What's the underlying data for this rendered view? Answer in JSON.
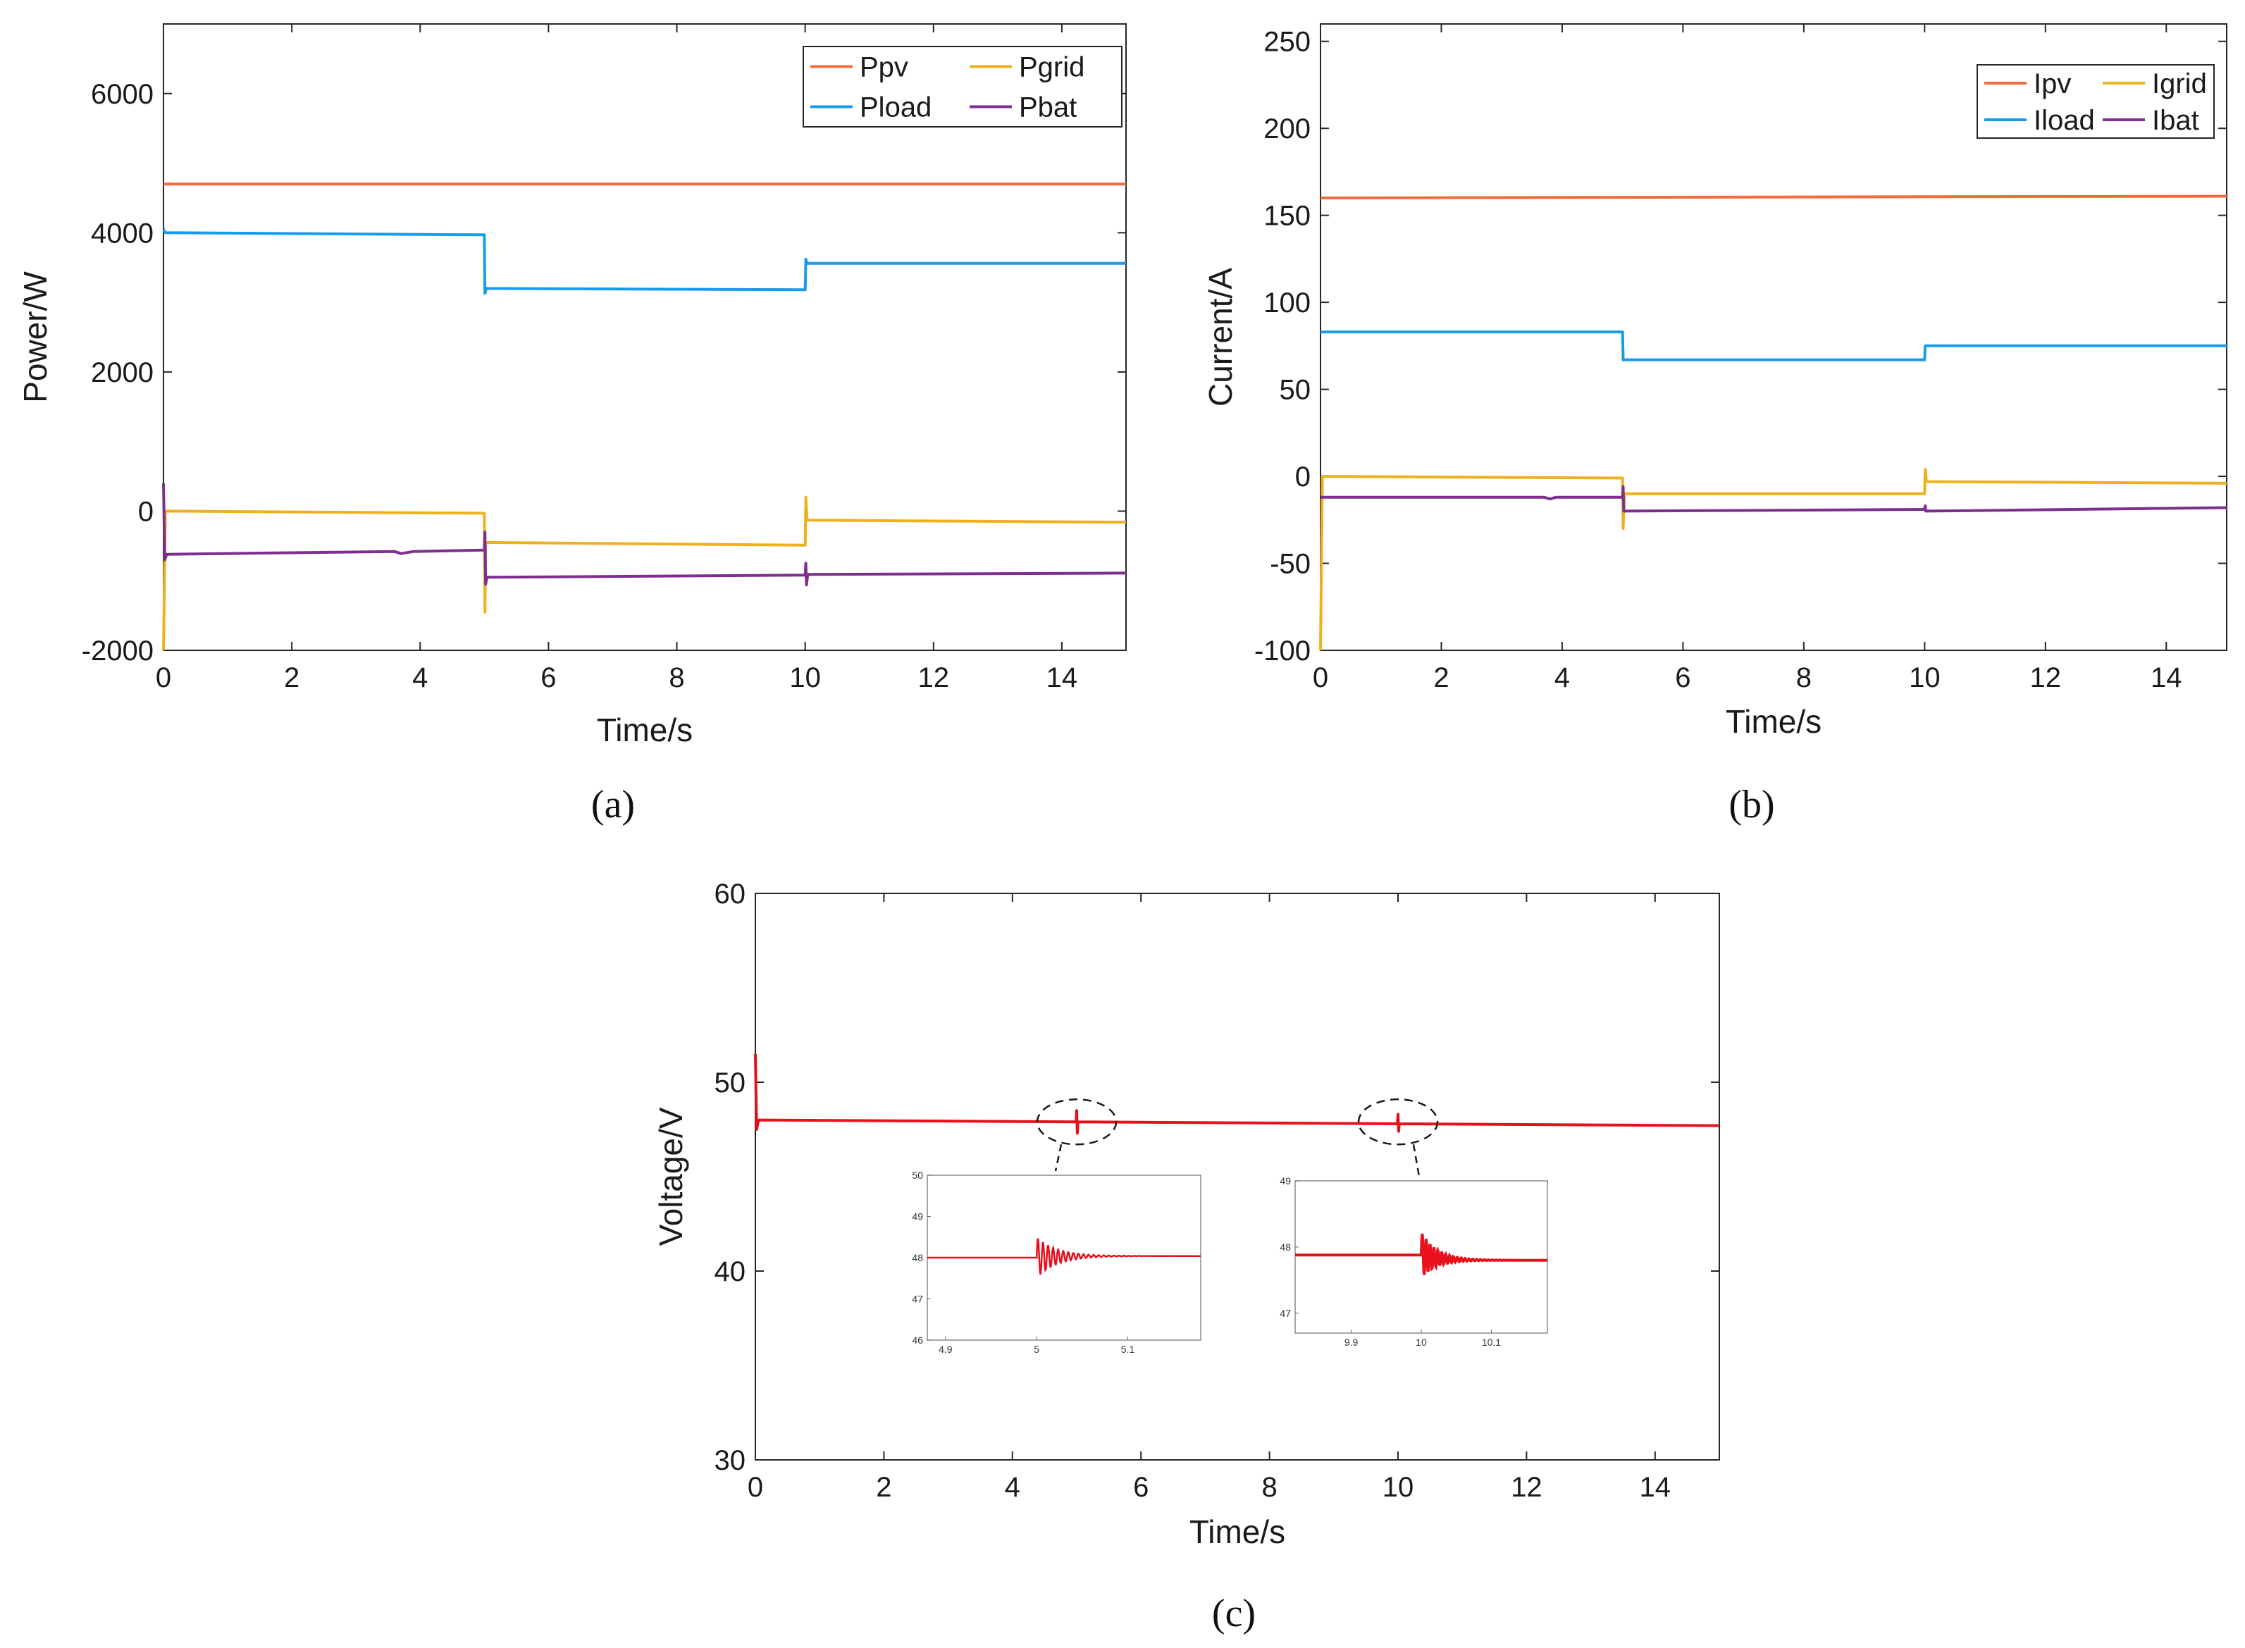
{
  "chart_data": [
    {
      "id": "a",
      "type": "line",
      "caption": "(a)",
      "xlabel": "Time/s",
      "ylabel": "Power/W",
      "xlim": [
        0,
        15
      ],
      "ylim": [
        -2000,
        7000
      ],
      "xticks": [
        0,
        2,
        4,
        6,
        8,
        10,
        12,
        14
      ],
      "yticks": [
        -2000,
        0,
        2000,
        4000,
        6000
      ],
      "grid": false,
      "legend_position": "top-right",
      "series": [
        {
          "name": "Ppv",
          "color": "#F26B3A",
          "points": [
            [
              0,
              4700
            ],
            [
              15,
              4700
            ]
          ]
        },
        {
          "name": "Pgrid",
          "color": "#EDB120",
          "points": [
            [
              0,
              -2000
            ],
            [
              0.03,
              0
            ],
            [
              4.99,
              -30
            ],
            [
              5,
              -30
            ],
            [
              5.01,
              -1450
            ],
            [
              5.02,
              -450
            ],
            [
              9.99,
              -490
            ],
            [
              10,
              -490
            ],
            [
              10.01,
              200
            ],
            [
              10.03,
              -130
            ],
            [
              15,
              -160
            ]
          ]
        },
        {
          "name": "Pload",
          "color": "#1A9BEA",
          "points": [
            [
              0,
              4050
            ],
            [
              0.03,
              4000
            ],
            [
              4.99,
              3970
            ],
            [
              5,
              3970
            ],
            [
              5.01,
              3130
            ],
            [
              5.03,
              3200
            ],
            [
              9.99,
              3180
            ],
            [
              10,
              3180
            ],
            [
              10.01,
              3620
            ],
            [
              10.03,
              3560
            ],
            [
              15,
              3560
            ]
          ]
        },
        {
          "name": "Pbat",
          "color": "#7E2F8E",
          "points": [
            [
              0,
              400
            ],
            [
              0.02,
              -700
            ],
            [
              0.05,
              -620
            ],
            [
              3.6,
              -580
            ],
            [
              3.7,
              -610
            ],
            [
              3.9,
              -580
            ],
            [
              4.99,
              -560
            ],
            [
              5,
              -560
            ],
            [
              5.01,
              -300
            ],
            [
              5.02,
              -1050
            ],
            [
              5.04,
              -950
            ],
            [
              9.99,
              -920
            ],
            [
              10,
              -920
            ],
            [
              10.01,
              -750
            ],
            [
              10.02,
              -1060
            ],
            [
              10.04,
              -910
            ],
            [
              15,
              -890
            ]
          ]
        }
      ]
    },
    {
      "id": "b",
      "type": "line",
      "caption": "(b)",
      "xlabel": "Time/s",
      "ylabel": "Current/A",
      "xlim": [
        0,
        15
      ],
      "ylim": [
        -100,
        260
      ],
      "xticks": [
        0,
        2,
        4,
        6,
        8,
        10,
        12,
        14
      ],
      "yticks": [
        -100,
        -50,
        0,
        50,
        100,
        150,
        200,
        250
      ],
      "grid": false,
      "legend_position": "top-right",
      "series": [
        {
          "name": "Ipv",
          "color": "#F26B3A",
          "points": [
            [
              0,
              160
            ],
            [
              15,
              161
            ]
          ]
        },
        {
          "name": "Igrid",
          "color": "#EDB120",
          "points": [
            [
              0,
              -100
            ],
            [
              0.03,
              0
            ],
            [
              4.99,
              -1
            ],
            [
              5,
              -1
            ],
            [
              5.01,
              -30
            ],
            [
              5.03,
              -10
            ],
            [
              9.99,
              -10
            ],
            [
              10,
              -10
            ],
            [
              10.01,
              4
            ],
            [
              10.03,
              -3
            ],
            [
              15,
              -4
            ]
          ]
        },
        {
          "name": "Iload",
          "color": "#1A9BEA",
          "points": [
            [
              0,
              83
            ],
            [
              4.99,
              83
            ],
            [
              5,
              83
            ],
            [
              5.01,
              67
            ],
            [
              9.99,
              67
            ],
            [
              10,
              67
            ],
            [
              10.01,
              75
            ],
            [
              15,
              75
            ]
          ]
        },
        {
          "name": "Ibat",
          "color": "#7E2F8E",
          "points": [
            [
              0,
              -12
            ],
            [
              3.7,
              -12
            ],
            [
              3.8,
              -13
            ],
            [
              3.9,
              -12
            ],
            [
              4.99,
              -12
            ],
            [
              5,
              -12
            ],
            [
              5.01,
              -6
            ],
            [
              5.02,
              -20
            ],
            [
              9.99,
              -19
            ],
            [
              10,
              -19
            ],
            [
              10.01,
              -17
            ],
            [
              10.02,
              -20
            ],
            [
              15,
              -18
            ]
          ]
        }
      ]
    },
    {
      "id": "c",
      "type": "line",
      "caption": "(c)",
      "xlabel": "Time/s",
      "ylabel": "Voltage/V",
      "xlim": [
        0,
        15
      ],
      "ylim": [
        30,
        60
      ],
      "xticks": [
        0,
        2,
        4,
        6,
        8,
        10,
        12,
        14
      ],
      "yticks": [
        30,
        40,
        50,
        60
      ],
      "grid": false,
      "series": [
        {
          "color": "#E8101A",
          "points": [
            [
              0,
              51.5
            ],
            [
              0.02,
              47.5
            ],
            [
              0.05,
              48
            ],
            [
              4.99,
              47.9
            ],
            [
              5,
              48.5
            ],
            [
              5.01,
              47.3
            ],
            [
              5.02,
              47.9
            ],
            [
              9.99,
              47.8
            ],
            [
              10,
              48.3
            ],
            [
              10.01,
              47.4
            ],
            [
              10.02,
              47.8
            ],
            [
              15,
              47.7
            ]
          ]
        }
      ],
      "insets": [
        {
          "xlim": [
            4.88,
            5.18
          ],
          "ylim": [
            46,
            50
          ],
          "xticks": [
            4.9,
            5,
            5.1
          ],
          "yticks": [
            46,
            47,
            48,
            49,
            50
          ],
          "tick_labels_x": [
            "4.9",
            "5",
            "5.1"
          ],
          "tick_labels_y": [
            "46",
            "47",
            "48",
            "49",
            "50"
          ],
          "base": 48.0,
          "settled": 48.04,
          "t0": 5.0,
          "amp": 0.5
        },
        {
          "xlim": [
            9.82,
            10.18
          ],
          "ylim": [
            46.7,
            49
          ],
          "xticks": [
            9.9,
            10,
            10.1
          ],
          "yticks": [
            47,
            48,
            49
          ],
          "tick_labels_x": [
            "9.9",
            "10",
            "10.1"
          ],
          "tick_labels_y": [
            "47",
            "48",
            "49"
          ],
          "base": 47.88,
          "settled": 47.8,
          "t0": 10.0,
          "amp": 0.35
        }
      ]
    }
  ]
}
